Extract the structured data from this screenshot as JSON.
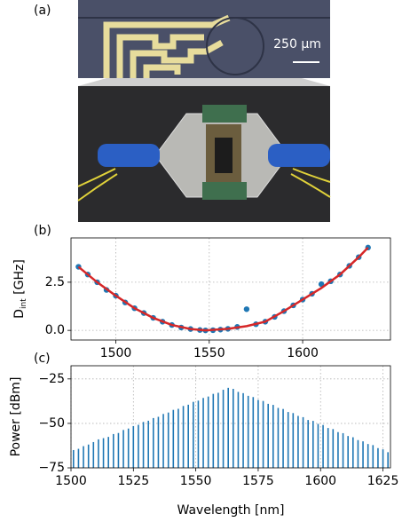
{
  "figure": {
    "panel_label": "(a)",
    "scale_bar_label": "250 µm"
  },
  "chart_data": [
    {
      "type": "scatter",
      "panel_label": "(b)",
      "ylabel": {
        "main": "D",
        "sub": "int",
        "unit": " [GHz]"
      },
      "xlim": [
        1476,
        1647
      ],
      "ylim": [
        -0.5,
        4.8
      ],
      "xticks": [
        1500,
        1550,
        1600
      ],
      "yticks": [
        {
          "value": 0,
          "label": "0.0"
        },
        {
          "value": 2.5,
          "label": "2.5"
        }
      ],
      "grid": true,
      "series": [
        {
          "mode": "markers",
          "color": "#1f77b4",
          "x": [
            1480,
            1485,
            1490,
            1495,
            1500,
            1505,
            1510,
            1515,
            1520,
            1525,
            1530,
            1535,
            1540,
            1545,
            1548,
            1552,
            1556,
            1560,
            1565,
            1570,
            1575,
            1580,
            1585,
            1590,
            1595,
            1600,
            1605,
            1610,
            1615,
            1620,
            1625,
            1630,
            1635
          ],
          "values": [
            3.3,
            2.9,
            2.5,
            2.1,
            1.8,
            1.45,
            1.15,
            0.9,
            0.65,
            0.45,
            0.28,
            0.15,
            0.07,
            0.02,
            0.0,
            0.01,
            0.04,
            0.08,
            0.18,
            1.1,
            0.32,
            0.45,
            0.7,
            1.0,
            1.3,
            1.6,
            1.9,
            2.4,
            2.55,
            2.9,
            3.35,
            3.8,
            4.3
          ]
        },
        {
          "mode": "line",
          "color": "#d62728",
          "x": [
            1480,
            1490,
            1500,
            1510,
            1520,
            1530,
            1540,
            1548,
            1560,
            1570,
            1580,
            1590,
            1600,
            1610,
            1620,
            1630,
            1635
          ],
          "values": [
            3.3,
            2.5,
            1.8,
            1.15,
            0.65,
            0.28,
            0.07,
            0.0,
            0.08,
            0.22,
            0.45,
            1.0,
            1.6,
            2.2,
            2.9,
            3.8,
            4.3
          ]
        }
      ]
    },
    {
      "type": "spectrum",
      "panel_label": "(c)",
      "xlabel": "Wavelength [nm]",
      "ylabel": "Power [dBm]",
      "xlim": [
        1500,
        1628
      ],
      "ylim": [
        -75,
        -17.6
      ],
      "xticks": [
        1500,
        1525,
        1550,
        1575,
        1600,
        1625
      ],
      "yticks": [
        {
          "value": -25,
          "label": "−25"
        },
        {
          "value": -50,
          "label": "−50"
        },
        {
          "value": -75,
          "label": "−75"
        }
      ],
      "grid": true,
      "color": "#1f77b4",
      "x": [
        1501,
        1503,
        1505,
        1507,
        1509,
        1511,
        1513,
        1515,
        1517,
        1519,
        1521,
        1523,
        1525,
        1527,
        1529,
        1531,
        1533,
        1535,
        1537,
        1539,
        1541,
        1543,
        1545,
        1547,
        1549,
        1551,
        1553,
        1555,
        1557,
        1559,
        1561,
        1563,
        1565,
        1567,
        1569,
        1571,
        1573,
        1575,
        1577,
        1579,
        1581,
        1583,
        1585,
        1587,
        1589,
        1591,
        1593,
        1595,
        1597,
        1599,
        1601,
        1603,
        1605,
        1607,
        1609,
        1611,
        1613,
        1615,
        1617,
        1619,
        1621,
        1623,
        1625,
        1627
      ],
      "values": [
        -65.0,
        -64.3,
        -62.8,
        -61.9,
        -60.5,
        -59.0,
        -58.3,
        -57.6,
        -56.0,
        -55.4,
        -53.7,
        -52.9,
        -51.5,
        -50.8,
        -49.2,
        -48.5,
        -47.0,
        -46.3,
        -44.7,
        -43.9,
        -42.4,
        -41.8,
        -40.2,
        -39.5,
        -37.9,
        -37.2,
        -35.7,
        -34.9,
        -33.4,
        -32.8,
        -31.1,
        -30.0,
        -30.6,
        -32.3,
        -33.0,
        -34.5,
        -35.2,
        -36.8,
        -37.4,
        -39.0,
        -39.6,
        -41.3,
        -41.9,
        -43.6,
        -44.2,
        -45.8,
        -46.5,
        -48.1,
        -48.6,
        -50.3,
        -50.9,
        -52.6,
        -53.2,
        -54.9,
        -55.5,
        -57.1,
        -57.8,
        -59.4,
        -60.1,
        -61.6,
        -62.2,
        -63.9,
        -64.6,
        -66.2
      ]
    }
  ]
}
